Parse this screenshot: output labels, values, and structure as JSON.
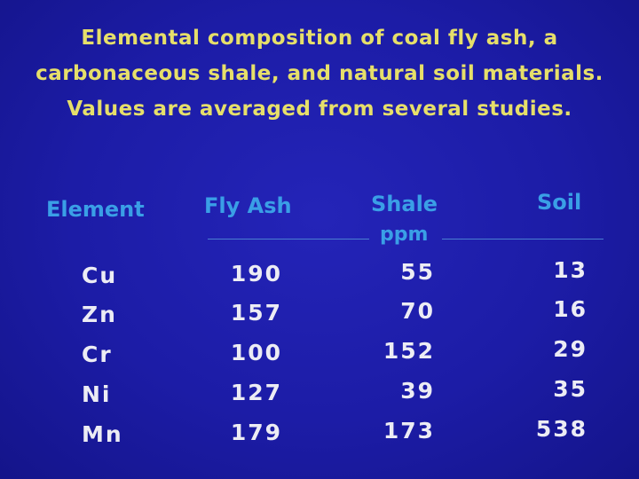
{
  "title": {
    "lines": [
      "Elemental composition of coal fly ash, a",
      "carbonaceous shale, and natural soil materials.",
      "Values are averaged from several studies."
    ]
  },
  "table": {
    "columns": [
      "Element",
      "Fly Ash",
      "Shale",
      "Soil"
    ],
    "unit": "ppm",
    "rows": [
      [
        "Cu",
        190,
        55,
        13
      ],
      [
        "Zn",
        157,
        70,
        16
      ],
      [
        "Cr",
        100,
        152,
        29
      ],
      [
        "Ni",
        127,
        39,
        35
      ],
      [
        "Mn",
        179,
        173,
        538
      ]
    ]
  }
}
